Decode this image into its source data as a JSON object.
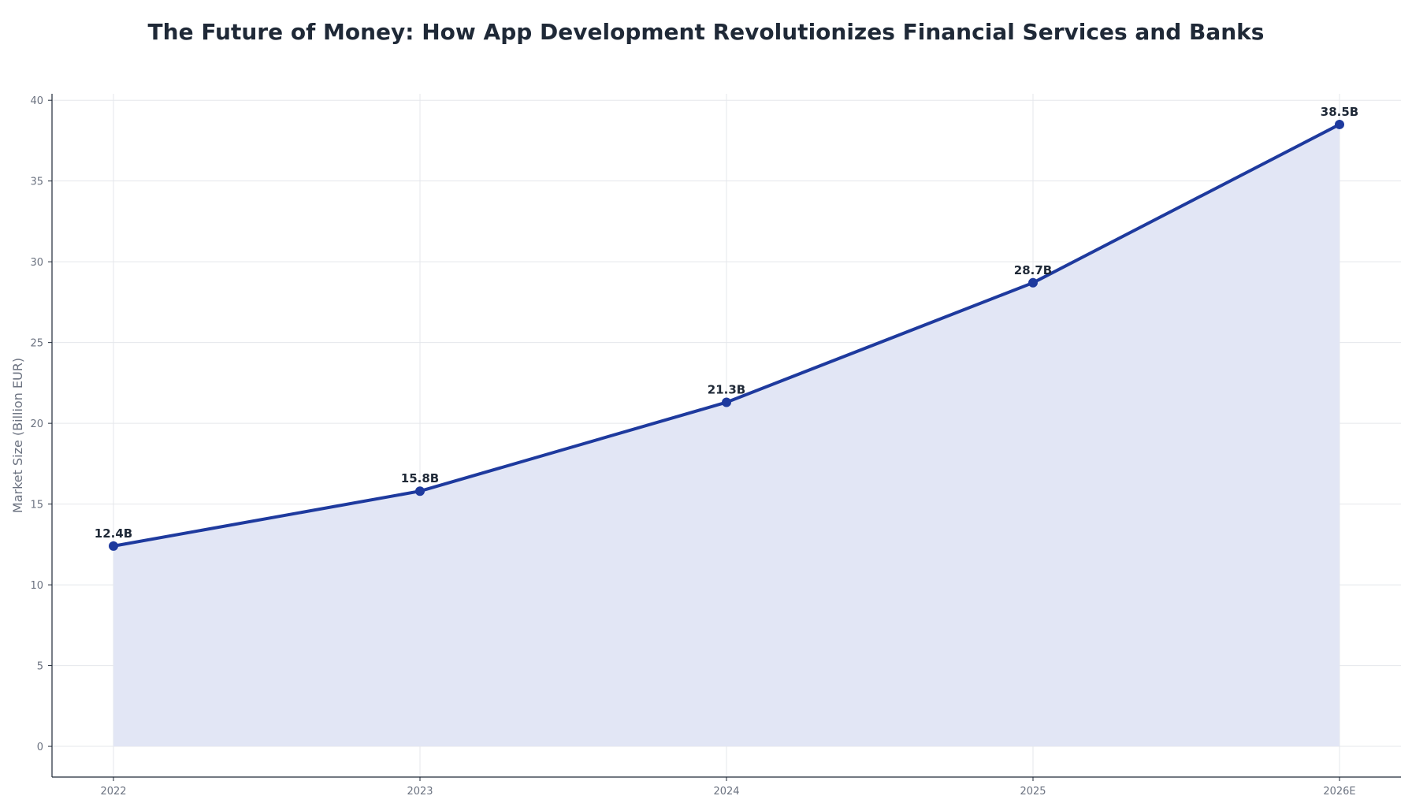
{
  "chart_data": {
    "type": "area",
    "title": "The Future of Money: How App Development Revolutionizes Financial Services and Banks",
    "xlabel": "",
    "ylabel": "Market Size (Billion EUR)",
    "categories": [
      "2022",
      "2023",
      "2024",
      "2025",
      "2026E"
    ],
    "series": [
      {
        "values": [
          12.4,
          15.8,
          21.3,
          28.7,
          38.5
        ],
        "data_labels": [
          "12.4B",
          "15.8B",
          "21.3B",
          "28.7B",
          "38.5B"
        ]
      }
    ],
    "ylim": [
      -1.9,
      40.4
    ],
    "yticks": [
      0,
      5,
      10,
      15,
      20,
      25,
      30,
      35,
      40
    ],
    "grid": true,
    "legend": "none",
    "colors": {
      "line": "#1e3a9e",
      "fill": "#e2e6f5",
      "grid": "#e5e7eb",
      "axis": "#1f2937",
      "title": "#1f2937",
      "tick_text": "#6b7280",
      "label_text": "#1f2937"
    }
  }
}
